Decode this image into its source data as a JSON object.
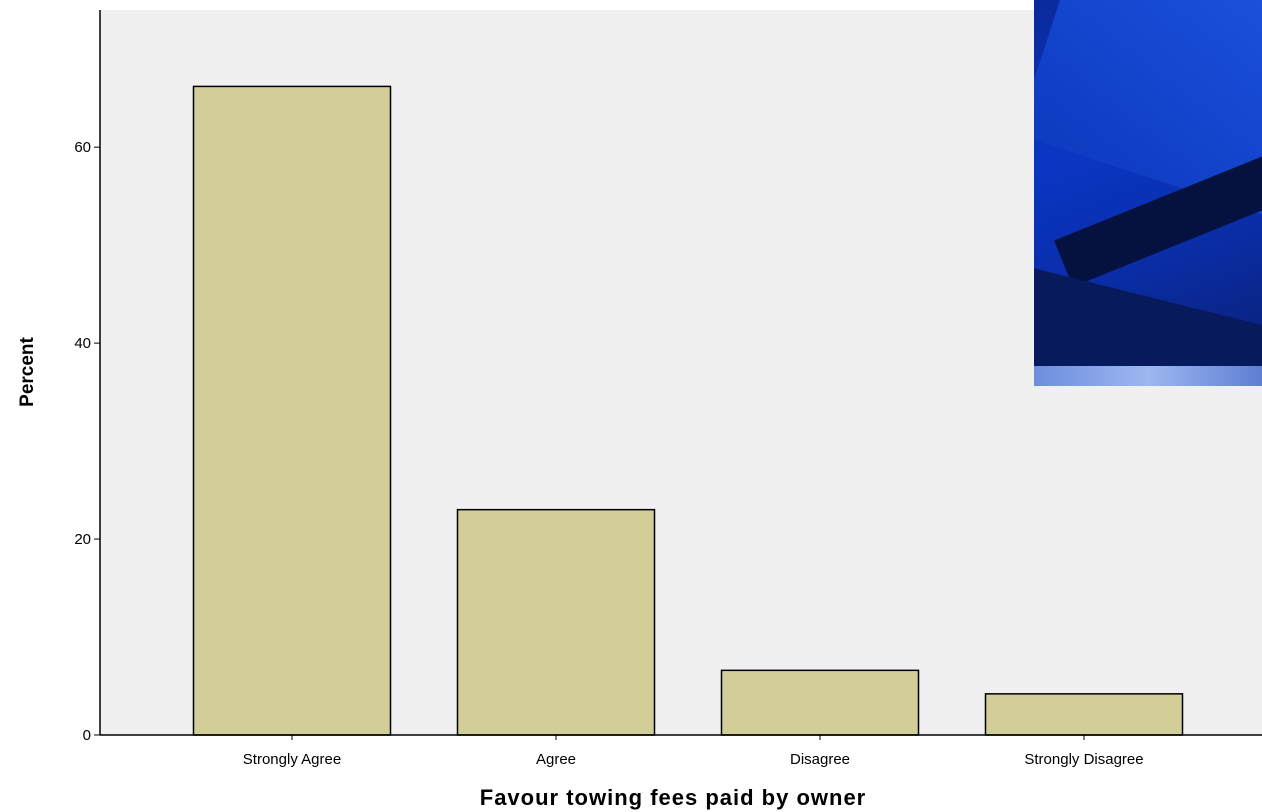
{
  "chart_data": {
    "type": "bar",
    "title": "",
    "xlabel": "Favour towing fees paid by owner",
    "ylabel": "Percent",
    "categories": [
      "Strongly Agree",
      "Agree",
      "Disagree",
      "Strongly Disagree"
    ],
    "values": [
      66.2,
      23.0,
      6.6,
      4.2
    ],
    "ylim": [
      0,
      74
    ],
    "yticks": [
      0,
      20,
      40,
      60
    ],
    "ytick_labels": [
      "0",
      "20",
      "40",
      "60"
    ],
    "grid": false,
    "legend": "none",
    "colors": {
      "bar_fill": "#d3cd98",
      "bar_stroke": "#000000",
      "plot_background": "#f0f0f0",
      "page_background": "#ffffff"
    }
  },
  "overlay_image": {
    "icon": "photo-thumbnail"
  }
}
